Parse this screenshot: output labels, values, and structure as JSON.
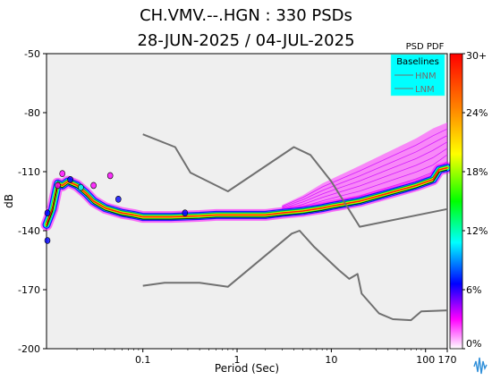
{
  "chart_data": {
    "type": "heatmap",
    "title": "CH.VMV.--.HGN : 330 PSDs",
    "subtitle": "28-JUN-2025 / 04-JUL-2025",
    "xlabel": "Period (Sec)",
    "ylabel": "dB",
    "x_scale": "log",
    "xlim": [
      0.0095,
      170
    ],
    "ylim": [
      -200,
      -50
    ],
    "x_ticks": [
      {
        "value": 0.1,
        "label": "0.1"
      },
      {
        "value": 1,
        "label": "1"
      },
      {
        "value": 10,
        "label": "10"
      },
      {
        "value": 100,
        "label": "100"
      },
      {
        "value": 170,
        "label": "170"
      }
    ],
    "y_ticks": [
      {
        "value": -50,
        "label": "-50"
      },
      {
        "value": -80,
        "label": "-80"
      },
      {
        "value": -110,
        "label": "-110"
      },
      {
        "value": -140,
        "label": "-140"
      },
      {
        "value": -170,
        "label": "-170"
      },
      {
        "value": -200,
        "label": "-200"
      }
    ],
    "colorbar": {
      "title": "PSD PDF",
      "ticks": [
        "30+",
        "24%",
        "18%",
        "12%",
        "6%",
        "0%"
      ],
      "colors": [
        "#ff0000",
        "#ff8000",
        "#ffff00",
        "#00ff00",
        "#00ffff",
        "#0000ff",
        "#ff00ff",
        "#ffffff"
      ]
    },
    "legend": {
      "title": "Baselines",
      "entries": [
        "HNM",
        "LNM"
      ],
      "placement": "top-right",
      "background": "#00ffff"
    },
    "series": [
      {
        "name": "HNM",
        "color": "#707070",
        "points": [
          [
            0.1,
            -91
          ],
          [
            0.22,
            -97.5
          ],
          [
            0.32,
            -110.5
          ],
          [
            0.8,
            -120
          ],
          [
            4.0,
            -97.5
          ],
          [
            6.0,
            -101.5
          ],
          [
            10.0,
            -115
          ],
          [
            20.0,
            -138
          ],
          [
            170.0,
            -129
          ]
        ]
      },
      {
        "name": "LNM",
        "color": "#707070",
        "points": [
          [
            0.1,
            -168
          ],
          [
            0.17,
            -166.5
          ],
          [
            0.4,
            -166.5
          ],
          [
            0.8,
            -168.5
          ],
          [
            3.8,
            -141.5
          ],
          [
            4.6,
            -140
          ],
          [
            6.5,
            -148
          ],
          [
            12.0,
            -160
          ],
          [
            15.5,
            -164.5
          ],
          [
            19.0,
            -162
          ],
          [
            21.0,
            -172
          ],
          [
            32.0,
            -182
          ],
          [
            45.0,
            -185
          ],
          [
            70.0,
            -185.5
          ],
          [
            90.0,
            -181
          ],
          [
            170.0,
            -180.5
          ]
        ]
      }
    ],
    "pdf_ridge": [
      [
        0.0095,
        -137
      ],
      [
        0.011,
        -129
      ],
      [
        0.0125,
        -116
      ],
      [
        0.014,
        -117
      ],
      [
        0.016,
        -115
      ],
      [
        0.02,
        -117
      ],
      [
        0.025,
        -121
      ],
      [
        0.03,
        -125
      ],
      [
        0.04,
        -128.5
      ],
      [
        0.06,
        -131
      ],
      [
        0.08,
        -132
      ],
      [
        0.1,
        -133
      ],
      [
        0.2,
        -133
      ],
      [
        0.4,
        -132.5
      ],
      [
        0.6,
        -132
      ],
      [
        1.0,
        -132
      ],
      [
        2.0,
        -132
      ],
      [
        3.0,
        -131
      ],
      [
        5.0,
        -130
      ],
      [
        8.0,
        -128.5
      ],
      [
        10.0,
        -127.5
      ],
      [
        20.0,
        -125
      ],
      [
        40.0,
        -121
      ],
      [
        80.0,
        -117
      ],
      [
        120.0,
        -114
      ],
      [
        140.0,
        -109
      ],
      [
        170.0,
        -108
      ]
    ],
    "pdf_upper_tail": [
      [
        3.0,
        -127
      ],
      [
        5.0,
        -122
      ],
      [
        8.0,
        -116
      ],
      [
        12.0,
        -112
      ],
      [
        20.0,
        -107
      ],
      [
        40.0,
        -100
      ],
      [
        80.0,
        -93
      ],
      [
        120.0,
        -88
      ],
      [
        170.0,
        -85
      ]
    ]
  }
}
